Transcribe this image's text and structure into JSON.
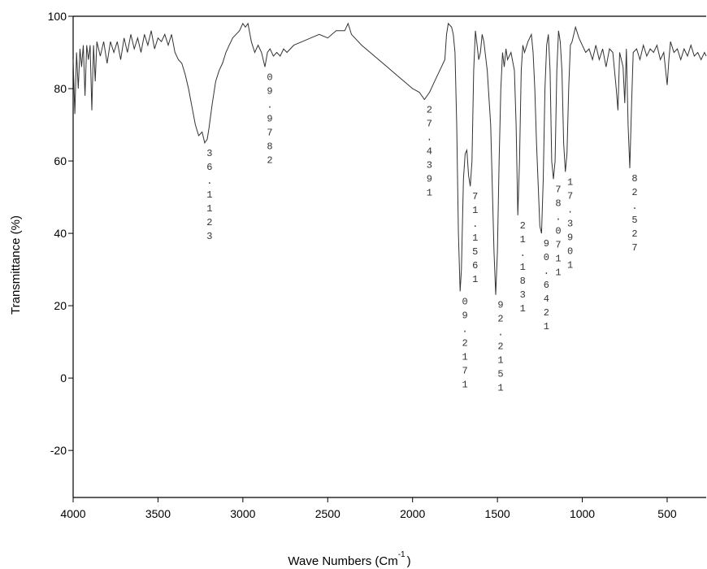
{
  "chart_data": {
    "type": "line",
    "ylabel": "Transmittance (%)",
    "xlabel": {
      "text": "Wave Numbers  (Cm",
      "sup": "-1",
      "end": ")"
    },
    "xlim": [
      4000,
      270
    ],
    "ylim": [
      -33,
      100
    ],
    "xticks": [
      4000,
      3500,
      3000,
      2500,
      2000,
      1500,
      1000,
      500
    ],
    "yticks": [
      -20,
      0,
      20,
      40,
      60,
      80,
      100
    ],
    "color": "#333333",
    "x": [
      4000,
      3990,
      3980,
      3970,
      3960,
      3950,
      3940,
      3930,
      3920,
      3910,
      3900,
      3890,
      3880,
      3870,
      3860,
      3840,
      3820,
      3800,
      3780,
      3760,
      3740,
      3720,
      3700,
      3680,
      3660,
      3640,
      3620,
      3600,
      3580,
      3560,
      3540,
      3520,
      3500,
      3480,
      3460,
      3440,
      3420,
      3400,
      3380,
      3360,
      3340,
      3320,
      3300,
      3280,
      3260,
      3240,
      3225,
      3210,
      3200,
      3180,
      3160,
      3140,
      3120,
      3100,
      3080,
      3060,
      3040,
      3020,
      3000,
      2985,
      2970,
      2950,
      2930,
      2910,
      2890,
      2870,
      2855,
      2840,
      2820,
      2800,
      2780,
      2760,
      2740,
      2700,
      2650,
      2600,
      2550,
      2500,
      2450,
      2400,
      2380,
      2360,
      2300,
      2250,
      2200,
      2150,
      2100,
      2050,
      2000,
      1960,
      1930,
      1900,
      1870,
      1840,
      1810,
      1800,
      1790,
      1770,
      1760,
      1750,
      1740,
      1730,
      1720,
      1712,
      1700,
      1690,
      1680,
      1670,
      1660,
      1650,
      1640,
      1630,
      1620,
      1610,
      1600,
      1590,
      1580,
      1560,
      1540,
      1520,
      1510,
      1500,
      1490,
      1480,
      1470,
      1460,
      1450,
      1440,
      1420,
      1400,
      1390,
      1380,
      1370,
      1360,
      1350,
      1340,
      1320,
      1300,
      1290,
      1280,
      1270,
      1250,
      1240,
      1230,
      1220,
      1210,
      1200,
      1190,
      1180,
      1170,
      1160,
      1150,
      1140,
      1130,
      1120,
      1110,
      1100,
      1090,
      1080,
      1070,
      1060,
      1050,
      1040,
      1020,
      1000,
      980,
      960,
      940,
      920,
      900,
      880,
      860,
      840,
      820,
      800,
      790,
      780,
      760,
      750,
      740,
      730,
      720,
      710,
      700,
      680,
      660,
      640,
      620,
      600,
      580,
      560,
      540,
      520,
      500,
      490,
      480,
      460,
      440,
      420,
      400,
      380,
      360,
      340,
      320,
      300,
      280,
      270
    ],
    "values": [
      88,
      73,
      90,
      80,
      91,
      86,
      92,
      78,
      92,
      88,
      92,
      74,
      92,
      82,
      93,
      89,
      93,
      87,
      93,
      90,
      93,
      88,
      94,
      90,
      95,
      91,
      94,
      90,
      95,
      92,
      96,
      91,
      94,
      93,
      95,
      92,
      95,
      90,
      88,
      87,
      84,
      80,
      75,
      70,
      67,
      68,
      65,
      66,
      69,
      76,
      82,
      85,
      87,
      90,
      92,
      94,
      95,
      96,
      98,
      97,
      98,
      93,
      90,
      92,
      90,
      86,
      90,
      91,
      89,
      90,
      89,
      91,
      90,
      92,
      93,
      94,
      95,
      94,
      96,
      96,
      98,
      95,
      92,
      90,
      88,
      86,
      84,
      82,
      80,
      79,
      77,
      79,
      82,
      85,
      88,
      95,
      98,
      97,
      95,
      90,
      70,
      40,
      24,
      30,
      55,
      62,
      63,
      56,
      53,
      60,
      85,
      96,
      92,
      88,
      90,
      95,
      93,
      85,
      70,
      35,
      23,
      35,
      60,
      80,
      90,
      86,
      91,
      88,
      90,
      85,
      70,
      45,
      60,
      85,
      92,
      90,
      93,
      95,
      90,
      80,
      65,
      42,
      40,
      55,
      80,
      92,
      95,
      85,
      60,
      55,
      60,
      85,
      96,
      93,
      85,
      65,
      57,
      62,
      80,
      92,
      93,
      95,
      97,
      94,
      92,
      90,
      91,
      88,
      92,
      88,
      91,
      86,
      91,
      90,
      80,
      74,
      90,
      86,
      76,
      91,
      70,
      58,
      75,
      90,
      91,
      88,
      92,
      89,
      91,
      90,
      92,
      88,
      90,
      81,
      88,
      93,
      90,
      91,
      88,
      91,
      89,
      92,
      89,
      90,
      88,
      90,
      89
    ],
    "annotations": [
      {
        "text": "36.1123",
        "x": 3225
      },
      {
        "text": "09.9782",
        "x": 2870
      },
      {
        "text": "27.4391",
        "x": 1930
      },
      {
        "text": "71.1561",
        "x": 1660
      },
      {
        "text": "09.2171",
        "x": 1720
      },
      {
        "text": "92.2151",
        "x": 1510
      },
      {
        "text": "21.1831",
        "x": 1380
      },
      {
        "text": "90.6421",
        "x": 1240
      },
      {
        "text": "78.0711",
        "x": 1170
      },
      {
        "text": "17.3901",
        "x": 1100
      },
      {
        "text": "82.527",
        "x": 720
      }
    ]
  }
}
